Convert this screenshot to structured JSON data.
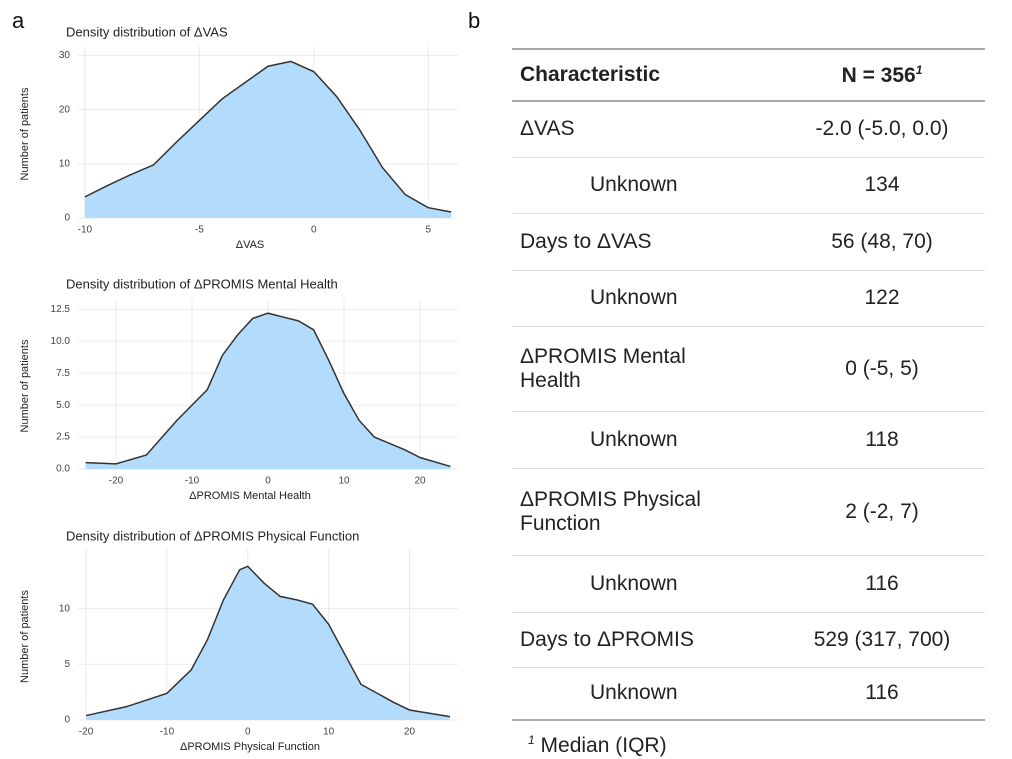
{
  "panels": {
    "left": "a",
    "right": "b"
  },
  "chart_data": [
    {
      "type": "area",
      "title": "Density distribution of ΔVAS",
      "x_label": "ΔVAS",
      "y_label": "Number of patients",
      "color": "#b3dcfc",
      "line_color": "#333333",
      "grid": true,
      "x": [
        -10,
        -9,
        -8,
        -7,
        -6,
        -5,
        -4,
        -3,
        -2,
        -1,
        0,
        1,
        2,
        3,
        4,
        5,
        6
      ],
      "values": [
        3.9,
        6,
        8,
        9.8,
        14,
        18,
        22,
        25,
        28,
        28.9,
        27,
        22.4,
        16.3,
        9.3,
        4.3,
        1.9,
        1.1
      ],
      "xlim": [
        -10.3,
        6.3
      ],
      "ylim": [
        0,
        31
      ],
      "xticks": [
        -10,
        -5,
        0,
        5
      ],
      "yticks": [
        0,
        10,
        20,
        30
      ]
    },
    {
      "type": "area",
      "title": "Density distribution of ΔPROMIS Mental Health",
      "x_label": "ΔPROMIS Mental Health",
      "y_label": "Number of patients",
      "color": "#b3dcfc",
      "line_color": "#333333",
      "grid": true,
      "x": [
        -24,
        -20,
        -16,
        -12,
        -10,
        -8,
        -6,
        -4,
        -2,
        0,
        2,
        4,
        6,
        8,
        10,
        12,
        14,
        16,
        18,
        20,
        24
      ],
      "values": [
        0.5,
        0.4,
        1.1,
        3.8,
        5,
        6.2,
        8.9,
        10.5,
        11.8,
        12.2,
        11.9,
        11.6,
        10.9,
        8.5,
        5.9,
        3.8,
        2.5,
        2,
        1.5,
        0.9,
        0.2
      ],
      "xlim": [
        -25,
        25
      ],
      "ylim": [
        0,
        13
      ],
      "xticks": [
        -20,
        -10,
        0,
        10,
        20
      ],
      "yticks": [
        {
          "value": 0,
          "label": "0.0"
        },
        {
          "value": 2.5,
          "label": "2.5"
        },
        {
          "value": 5,
          "label": "5.0"
        },
        {
          "value": 7.5,
          "label": "7.5"
        },
        {
          "value": 10,
          "label": "10.0"
        },
        12.5
      ]
    },
    {
      "type": "area",
      "title": "Density distribution of ΔPROMIS Physical Function",
      "x_label": "ΔPROMIS Physical Function",
      "y_label": "Number of patients",
      "color": "#b3dcfc",
      "line_color": "#333333",
      "grid": true,
      "x": [
        -20,
        -15,
        -10,
        -7,
        -5,
        -3,
        -1,
        0,
        2,
        4,
        6,
        8,
        10,
        12,
        14,
        16,
        18,
        20,
        25
      ],
      "values": [
        0.4,
        1.2,
        2.4,
        4.5,
        7.2,
        10.8,
        13.5,
        13.8,
        12.3,
        11.1,
        10.8,
        10.4,
        8.6,
        5.9,
        3.2,
        2.4,
        1.6,
        0.9,
        0.3
      ],
      "xlim": [
        -21,
        26
      ],
      "ylim": [
        0,
        15
      ],
      "xticks": [
        -20,
        -10,
        0,
        10,
        20
      ],
      "yticks": [
        0,
        5,
        10
      ]
    }
  ],
  "table": {
    "header": [
      "Characteristic",
      "N = 356"
    ],
    "footnote_marker": "1",
    "footnote": "Median (IQR)",
    "rows": [
      [
        "ΔVAS",
        "-2.0 (-5.0, 0.0)"
      ],
      [
        "Unknown",
        "134"
      ],
      [
        "Days to ΔVAS",
        "56 (48, 70)"
      ],
      [
        "Unknown",
        "122"
      ],
      [
        "ΔPROMIS Mental Health",
        "0 (-5, 5)"
      ],
      [
        "Unknown",
        "118"
      ],
      [
        "ΔPROMIS Physical Function",
        "2 (-2, 7)"
      ],
      [
        "Unknown",
        "116"
      ],
      [
        "Days to ΔPROMIS",
        "529 (317, 700)"
      ],
      [
        "Unknown",
        "116"
      ]
    ]
  }
}
